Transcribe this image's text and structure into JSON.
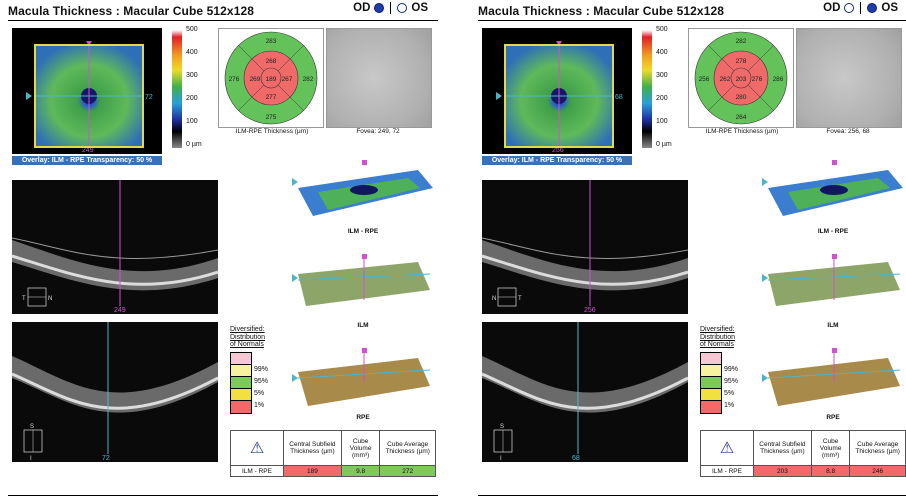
{
  "panels": [
    {
      "header": {
        "title": "Macula Thickness : Macular Cube 512x128"
      },
      "eye_selector": {
        "od_label": "OD",
        "os_label": "OS",
        "selected": "OD"
      },
      "thickness_map": {
        "h_line_value": "72",
        "v_line_value": "249",
        "overlay_caption": "Overlay: ILM - RPE  Transparency: 50 %"
      },
      "colorbar": {
        "ticks": [
          "500",
          "400",
          "300",
          "200",
          "100",
          "0 µm"
        ]
      },
      "etdrs": {
        "center": "189",
        "inner_top": "268",
        "inner_nasal": "267",
        "inner_bottom": "277",
        "inner_temporal": "269",
        "outer_top": "283",
        "outer_nasal": "282",
        "outer_bottom": "275",
        "outer_temporal": "276",
        "caption": "ILM-RPE Thickness (µm)"
      },
      "fundus": {
        "caption": "Fovea: 249, 72"
      },
      "bscan1": {
        "slice": "249",
        "orientation": [
          "T",
          "N"
        ]
      },
      "bscan2": {
        "slice": "72",
        "orientation": [
          "S",
          "I"
        ]
      },
      "surfaces": {
        "label1": "ILM - RPE",
        "label2": "ILM",
        "label3": "RPE"
      },
      "legend": {
        "title": [
          "Diversified:",
          "Distribution",
          "of Normals"
        ],
        "pcts": [
          "99%",
          "95%",
          "5%",
          "1%"
        ]
      },
      "summary": {
        "h1": "Central Subfield Thickness (µm)",
        "h2": "Cube Volume (mm³)",
        "h3": "Cube Average Thickness (µm)",
        "row_label": "ILM - RPE",
        "csf": "189",
        "volume": "9.8",
        "avg": "272",
        "csf_color": "#f06a6a",
        "vol_color": "#7ccb5a",
        "avg_color": "#7ccb5a"
      }
    },
    {
      "header": {
        "title": "Macula Thickness : Macular Cube 512x128"
      },
      "eye_selector": {
        "od_label": "OD",
        "os_label": "OS",
        "selected": "OS"
      },
      "thickness_map": {
        "h_line_value": "68",
        "v_line_value": "256",
        "overlay_caption": "Overlay: ILM - RPE  Transparency: 50 %"
      },
      "colorbar": {
        "ticks": [
          "500",
          "400",
          "300",
          "200",
          "100",
          "0 µm"
        ]
      },
      "etdrs": {
        "center": "203",
        "inner_top": "278",
        "inner_nasal": "276",
        "inner_bottom": "280",
        "inner_temporal": "262",
        "outer_top": "282",
        "outer_nasal": "286",
        "outer_bottom": "264",
        "outer_temporal": "256",
        "caption": "ILM-RPE Thickness (µm)"
      },
      "fundus": {
        "caption": "Fovea: 256, 68"
      },
      "bscan1": {
        "slice": "256",
        "orientation": [
          "N",
          "T"
        ]
      },
      "bscan2": {
        "slice": "68",
        "orientation": [
          "S",
          "I"
        ]
      },
      "surfaces": {
        "label1": "ILM - RPE",
        "label2": "ILM",
        "label3": "RPE"
      },
      "legend": {
        "title": [
          "Diversified:",
          "Distribution",
          "of Normals"
        ],
        "pcts": [
          "99%",
          "95%",
          "5%",
          "1%"
        ]
      },
      "summary": {
        "h1": "Central Subfield Thickness (µm)",
        "h2": "Cube Volume (mm³)",
        "h3": "Cube Average Thickness (µm)",
        "row_label": "ILM - RPE",
        "csf": "203",
        "volume": "8.8",
        "avg": "246",
        "csf_color": "#f06a6a",
        "vol_color": "#f06a6a",
        "avg_color": "#f06a6a"
      }
    }
  ],
  "colors": {
    "overlay_bar": "#3e6fb5",
    "etdrs_outer": "#63c35a",
    "etdrs_inner": "#f06a6a",
    "crosshair": "#4db4c9",
    "scanline": "#d14fd1"
  }
}
